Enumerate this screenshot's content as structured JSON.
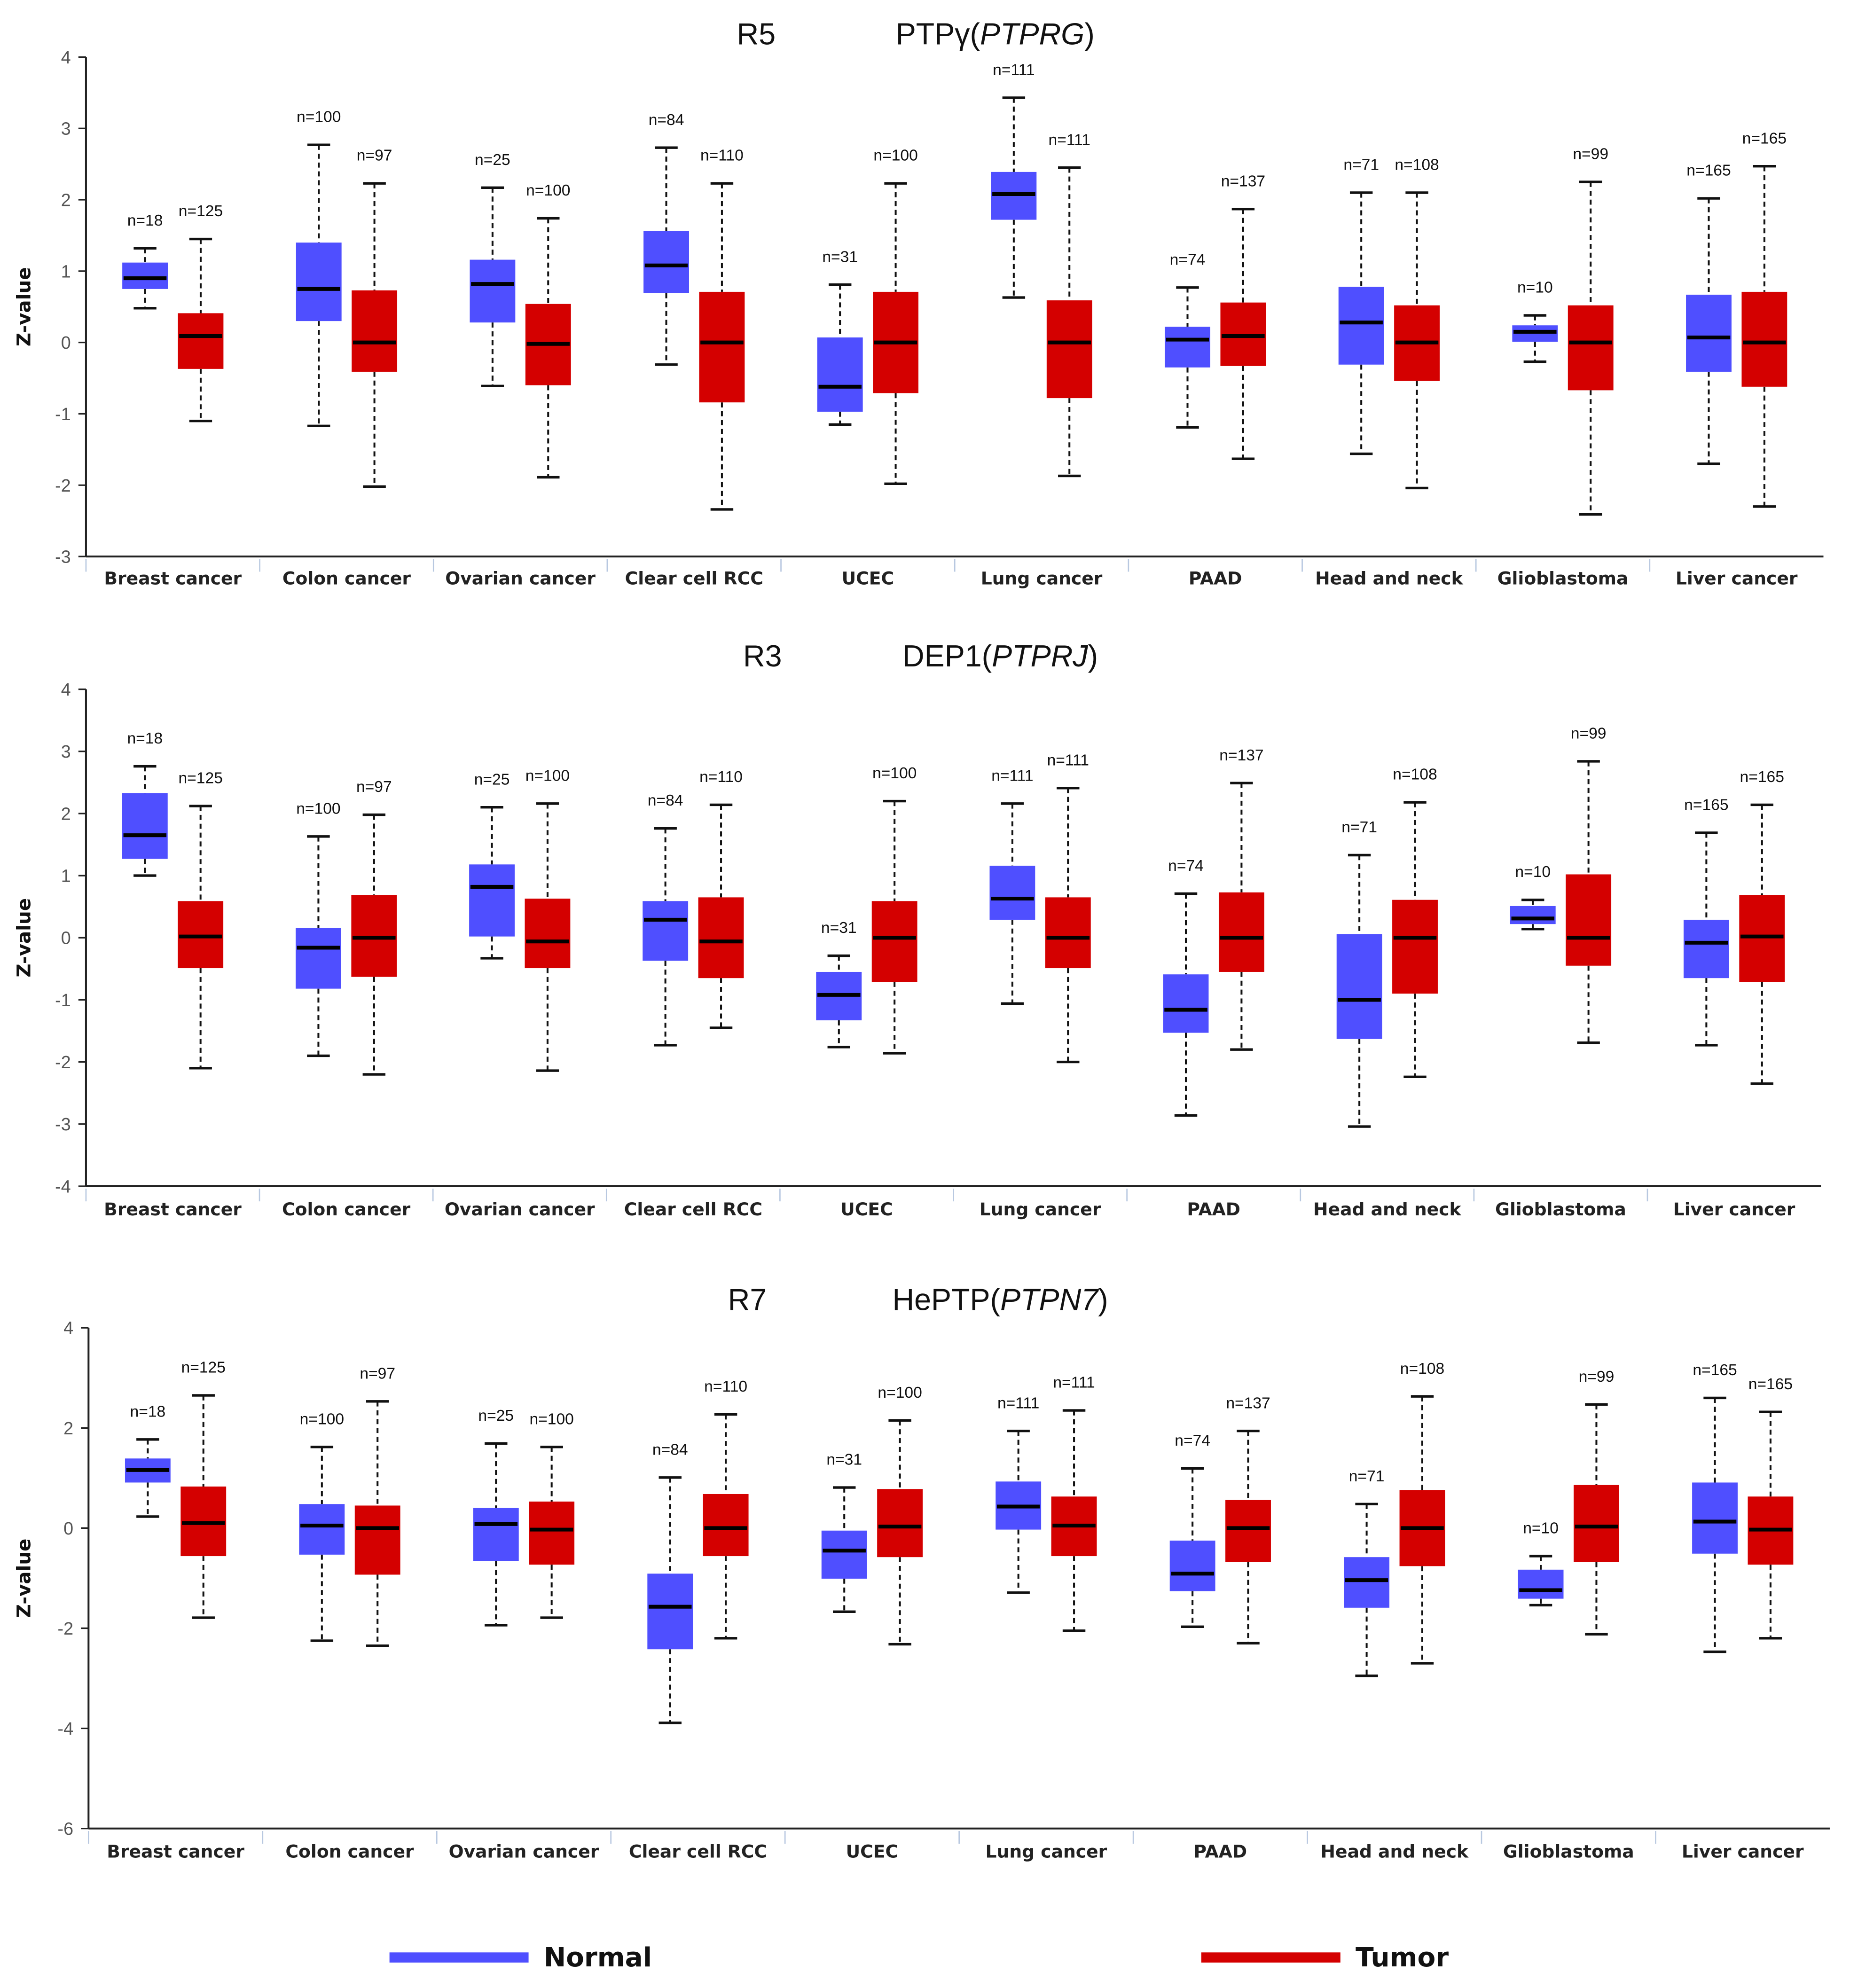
{
  "legend": {
    "normal": "Normal",
    "tumor": "Tumor",
    "normal_color": "#4f4fff",
    "tumor_color": "#d40000"
  },
  "chart_data": [
    {
      "type": "box",
      "title_prefix": "R5",
      "title_pre": "PTPγ(",
      "title_gene": "PTPRG",
      "title_post": ")",
      "ylabel": "Z-value",
      "ylim": [
        -3,
        4
      ],
      "yticks": [
        4,
        3,
        2,
        1,
        0,
        -1,
        -2,
        -3
      ],
      "categories": [
        "Breast cancer",
        "Colon cancer",
        "Ovarian cancer",
        "Clear cell RCC",
        "UCEC",
        "Lung cancer",
        "PAAD",
        "Head and neck",
        "Glioblastoma",
        "Liver cancer"
      ],
      "series": [
        {
          "name": "Normal",
          "boxes": [
            {
              "min": 0.48,
              "q1": 0.75,
              "median": 0.9,
              "q3": 1.12,
              "max": 1.32,
              "n": "n=18"
            },
            {
              "min": -1.17,
              "q1": 0.3,
              "median": 0.75,
              "q3": 1.4,
              "max": 2.77,
              "n": "n=100"
            },
            {
              "min": -0.61,
              "q1": 0.28,
              "median": 0.82,
              "q3": 1.16,
              "max": 2.17,
              "n": "n=25"
            },
            {
              "min": -0.31,
              "q1": 0.69,
              "median": 1.08,
              "q3": 1.56,
              "max": 2.73,
              "n": "n=84"
            },
            {
              "min": -1.15,
              "q1": -0.97,
              "median": -0.62,
              "q3": 0.07,
              "max": 0.81,
              "n": "n=31"
            },
            {
              "min": 0.63,
              "q1": 1.72,
              "median": 2.08,
              "q3": 2.39,
              "max": 3.43,
              "n": "n=111"
            },
            {
              "min": -1.19,
              "q1": -0.35,
              "median": 0.04,
              "q3": 0.22,
              "max": 0.77,
              "n": "n=74"
            },
            {
              "min": -1.56,
              "q1": -0.31,
              "median": 0.28,
              "q3": 0.78,
              "max": 2.1,
              "n": "n=71"
            },
            {
              "min": -0.27,
              "q1": 0.01,
              "median": 0.15,
              "q3": 0.24,
              "max": 0.38,
              "n": "n=10"
            },
            {
              "min": -1.7,
              "q1": -0.41,
              "median": 0.07,
              "q3": 0.67,
              "max": 2.02,
              "n": "n=165"
            }
          ]
        },
        {
          "name": "Tumor",
          "boxes": [
            {
              "min": -1.1,
              "q1": -0.37,
              "median": 0.09,
              "q3": 0.41,
              "max": 1.45,
              "n": "n=125"
            },
            {
              "min": -2.02,
              "q1": -0.41,
              "median": 0,
              "q3": 0.73,
              "max": 2.23,
              "n": "n=97"
            },
            {
              "min": -1.89,
              "q1": -0.6,
              "median": -0.02,
              "q3": 0.54,
              "max": 1.74,
              "n": "n=100"
            },
            {
              "min": -2.34,
              "q1": -0.84,
              "median": 0,
              "q3": 0.71,
              "max": 2.23,
              "n": "n=110"
            },
            {
              "min": -1.98,
              "q1": -0.71,
              "median": 0,
              "q3": 0.71,
              "max": 2.23,
              "n": "n=100"
            },
            {
              "min": -1.87,
              "q1": -0.78,
              "median": 0,
              "q3": 0.59,
              "max": 2.45,
              "n": "n=111"
            },
            {
              "min": -1.63,
              "q1": -0.33,
              "median": 0.09,
              "q3": 0.56,
              "max": 1.87,
              "n": "n=137"
            },
            {
              "min": -2.04,
              "q1": -0.54,
              "median": 0,
              "q3": 0.52,
              "max": 2.1,
              "n": "n=108"
            },
            {
              "min": -2.41,
              "q1": -0.67,
              "median": 0,
              "q3": 0.52,
              "max": 2.25,
              "n": "n=99"
            },
            {
              "min": -2.3,
              "q1": -0.62,
              "median": 0,
              "q3": 0.71,
              "max": 2.47,
              "n": "n=165"
            }
          ]
        }
      ]
    },
    {
      "type": "box",
      "title_prefix": "R3",
      "title_pre": "DEP1(",
      "title_gene": "PTPRJ",
      "title_post": ")",
      "ylabel": "Z-value",
      "ylim": [
        -4,
        4
      ],
      "yticks": [
        4,
        3,
        2,
        1,
        0,
        -1,
        -2,
        -3,
        -4
      ],
      "categories": [
        "Breast cancer",
        "Colon cancer",
        "Ovarian cancer",
        "Clear cell RCC",
        "UCEC",
        "Lung cancer",
        "PAAD",
        "Head and neck",
        "Glioblastoma",
        "Liver cancer"
      ],
      "series": [
        {
          "name": "Normal",
          "boxes": [
            {
              "min": 1.0,
              "q1": 1.27,
              "median": 1.65,
              "q3": 2.33,
              "max": 2.76,
              "n": "n=18"
            },
            {
              "min": -1.9,
              "q1": -0.82,
              "median": -0.16,
              "q3": 0.16,
              "max": 1.63,
              "n": "n=100"
            },
            {
              "min": -0.33,
              "q1": 0.02,
              "median": 0.82,
              "q3": 1.18,
              "max": 2.1,
              "n": "n=25"
            },
            {
              "min": -1.73,
              "q1": -0.37,
              "median": 0.29,
              "q3": 0.59,
              "max": 1.76,
              "n": "n=84"
            },
            {
              "min": -1.76,
              "q1": -1.33,
              "median": -0.92,
              "q3": -0.55,
              "max": -0.29,
              "n": "n=31"
            },
            {
              "min": -1.06,
              "q1": 0.29,
              "median": 0.63,
              "q3": 1.16,
              "max": 2.16,
              "n": "n=111"
            },
            {
              "min": -2.86,
              "q1": -1.53,
              "median": -1.16,
              "q3": -0.59,
              "max": 0.71,
              "n": "n=74"
            },
            {
              "min": -3.04,
              "q1": -1.63,
              "median": -1.0,
              "q3": 0.06,
              "max": 1.33,
              "n": "n=71"
            },
            {
              "min": 0.14,
              "q1": 0.22,
              "median": 0.31,
              "q3": 0.51,
              "max": 0.61,
              "n": "n=10"
            },
            {
              "min": -1.73,
              "q1": -0.65,
              "median": -0.08,
              "q3": 0.29,
              "max": 1.69,
              "n": "n=165"
            }
          ]
        },
        {
          "name": "Tumor",
          "boxes": [
            {
              "min": -2.1,
              "q1": -0.49,
              "median": 0.02,
              "q3": 0.59,
              "max": 2.12,
              "n": "n=125"
            },
            {
              "min": -2.2,
              "q1": -0.63,
              "median": 0,
              "q3": 0.69,
              "max": 1.98,
              "n": "n=97"
            },
            {
              "min": -2.14,
              "q1": -0.49,
              "median": -0.06,
              "q3": 0.63,
              "max": 2.16,
              "n": "n=100"
            },
            {
              "min": -1.45,
              "q1": -0.65,
              "median": -0.06,
              "q3": 0.65,
              "max": 2.14,
              "n": "n=110"
            },
            {
              "min": -1.86,
              "q1": -0.71,
              "median": 0,
              "q3": 0.59,
              "max": 2.2,
              "n": "n=100"
            },
            {
              "min": -2.0,
              "q1": -0.49,
              "median": 0,
              "q3": 0.65,
              "max": 2.41,
              "n": "n=111"
            },
            {
              "min": -1.8,
              "q1": -0.55,
              "median": 0,
              "q3": 0.73,
              "max": 2.49,
              "n": "n=137"
            },
            {
              "min": -2.24,
              "q1": -0.9,
              "median": 0,
              "q3": 0.61,
              "max": 2.18,
              "n": "n=108"
            },
            {
              "min": -1.69,
              "q1": -0.45,
              "median": 0,
              "q3": 1.02,
              "max": 2.84,
              "n": "n=99"
            },
            {
              "min": -2.35,
              "q1": -0.71,
              "median": 0.02,
              "q3": 0.69,
              "max": 2.14,
              "n": "n=165"
            }
          ]
        }
      ]
    },
    {
      "type": "box",
      "title_prefix": "R7",
      "title_pre": "HePTP(",
      "title_gene": "PTPN7",
      "title_post": ")",
      "ylabel": "Z-value",
      "ylim": [
        -6,
        4
      ],
      "yticks": [
        4,
        2,
        0,
        -2,
        -4,
        -6
      ],
      "categories": [
        "Breast cancer",
        "Colon cancer",
        "Ovarian cancer",
        "Clear cell RCC",
        "UCEC",
        "Lung cancer",
        "PAAD",
        "Head and neck",
        "Glioblastoma",
        "Liver cancer"
      ],
      "series": [
        {
          "name": "Normal",
          "boxes": [
            {
              "min": 0.23,
              "q1": 0.91,
              "median": 1.16,
              "q3": 1.39,
              "max": 1.77,
              "n": "n=18"
            },
            {
              "min": -2.25,
              "q1": -0.53,
              "median": 0.05,
              "q3": 0.48,
              "max": 1.62,
              "n": "n=100"
            },
            {
              "min": -1.94,
              "q1": -0.66,
              "median": 0.08,
              "q3": 0.4,
              "max": 1.69,
              "n": "n=25"
            },
            {
              "min": -3.89,
              "q1": -2.42,
              "median": -1.57,
              "q3": -0.91,
              "max": 1.01,
              "n": "n=84"
            },
            {
              "min": -1.67,
              "q1": -1.01,
              "median": -0.45,
              "q3": -0.05,
              "max": 0.81,
              "n": "n=31"
            },
            {
              "min": -1.29,
              "q1": -0.03,
              "median": 0.43,
              "q3": 0.93,
              "max": 1.94,
              "n": "n=111"
            },
            {
              "min": -1.97,
              "q1": -1.26,
              "median": -0.91,
              "q3": -0.25,
              "max": 1.19,
              "n": "n=74"
            },
            {
              "min": -2.95,
              "q1": -1.59,
              "median": -1.04,
              "q3": -0.58,
              "max": 0.48,
              "n": "n=71"
            },
            {
              "min": -1.54,
              "q1": -1.41,
              "median": -1.24,
              "q3": -0.83,
              "max": -0.56,
              "n": "n=10"
            },
            {
              "min": -2.47,
              "q1": -0.51,
              "median": 0.13,
              "q3": 0.91,
              "max": 2.6,
              "n": "n=165"
            }
          ]
        },
        {
          "name": "Tumor",
          "boxes": [
            {
              "min": -1.79,
              "q1": -0.56,
              "median": 0.1,
              "q3": 0.83,
              "max": 2.65,
              "n": "n=125"
            },
            {
              "min": -2.35,
              "q1": -0.93,
              "median": 0,
              "q3": 0.45,
              "max": 2.53,
              "n": "n=97"
            },
            {
              "min": -1.79,
              "q1": -0.73,
              "median": -0.03,
              "q3": 0.53,
              "max": 1.62,
              "n": "n=100"
            },
            {
              "min": -2.2,
              "q1": -0.56,
              "median": 0,
              "q3": 0.68,
              "max": 2.27,
              "n": "n=110"
            },
            {
              "min": -2.32,
              "q1": -0.58,
              "median": 0.03,
              "q3": 0.78,
              "max": 2.15,
              "n": "n=100"
            },
            {
              "min": -2.05,
              "q1": -0.56,
              "median": 0.05,
              "q3": 0.63,
              "max": 2.35,
              "n": "n=111"
            },
            {
              "min": -2.3,
              "q1": -0.68,
              "median": 0,
              "q3": 0.56,
              "max": 1.94,
              "n": "n=137"
            },
            {
              "min": -2.7,
              "q1": -0.76,
              "median": 0,
              "q3": 0.76,
              "max": 2.63,
              "n": "n=108"
            },
            {
              "min": -2.12,
              "q1": -0.68,
              "median": 0.03,
              "q3": 0.86,
              "max": 2.47,
              "n": "n=99"
            },
            {
              "min": -2.2,
              "q1": -0.73,
              "median": -0.03,
              "q3": 0.63,
              "max": 2.32,
              "n": "n=165"
            }
          ]
        }
      ]
    }
  ]
}
